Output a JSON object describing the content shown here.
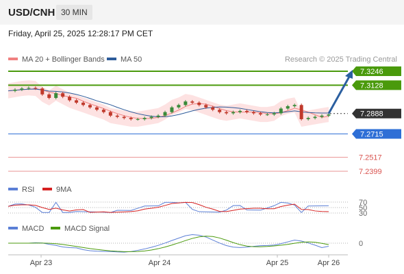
{
  "header": {
    "symbol": "USD/CNH",
    "timeframe": "30 MIN"
  },
  "datetime": "Friday, April 25, 2025 12:28:17 PM CET",
  "source": "Research © 2025 Trading Central",
  "colors": {
    "resistance": "#4a9a0c",
    "current": "#333333",
    "support": "#2e6fd6",
    "target": "#e06666",
    "ma20": "#f08080",
    "bollinger_fill": "#fcd6d6",
    "ma50": "#2d5b9a",
    "arrow": "#2b5fa0",
    "rsi": "#5b7fd6",
    "rsi_ma": "#d62020",
    "macd": "#5b7fd6",
    "macd_signal": "#4a9a0c",
    "candle_up": "#3a8a3a",
    "candle_down": "#c0392b"
  },
  "chart_data": [
    {
      "type": "candlestick",
      "title": "USD/CNH",
      "legend": [
        "MA 20 + Bollinger Bands",
        "MA 50"
      ],
      "x_ticks": [
        "Apr 23",
        "Apr 24",
        "Apr 25",
        "Apr 26"
      ],
      "ylim": [
        7.2399,
        7.3246
      ],
      "levels": [
        {
          "label": "7.3246",
          "role": "resistance"
        },
        {
          "label": "7.3128",
          "role": "resistance"
        },
        {
          "label": "7.2888",
          "role": "current"
        },
        {
          "label": "7.2715",
          "role": "support"
        },
        {
          "label": "7.2517",
          "role": "target"
        },
        {
          "label": "7.2399",
          "role": "target"
        }
      ],
      "price_path": [
        7.308,
        7.309,
        7.31,
        7.3105,
        7.31,
        7.305,
        7.302,
        7.306,
        7.303,
        7.3,
        7.298,
        7.296,
        7.294,
        7.292,
        7.29,
        7.287,
        7.286,
        7.285,
        7.284,
        7.284,
        7.285,
        7.286,
        7.287,
        7.29,
        7.294,
        7.296,
        7.299,
        7.298,
        7.296,
        7.294,
        7.292,
        7.29,
        7.289,
        7.29,
        7.291,
        7.29,
        7.289,
        7.288,
        7.288,
        7.289,
        7.293,
        7.295,
        7.296,
        7.284,
        7.285,
        7.286,
        7.287,
        7.288
      ],
      "forecast_arrow": {
        "from": 7.2888,
        "to": 7.3246
      }
    },
    {
      "type": "line",
      "title": "RSI",
      "series": [
        {
          "name": "RSI"
        },
        {
          "name": "9MA"
        }
      ],
      "levels": [
        70,
        50,
        30
      ]
    },
    {
      "type": "line",
      "title": "MACD",
      "series": [
        {
          "name": "MACD"
        },
        {
          "name": "MACD Signal"
        }
      ],
      "levels": [
        0
      ]
    }
  ]
}
